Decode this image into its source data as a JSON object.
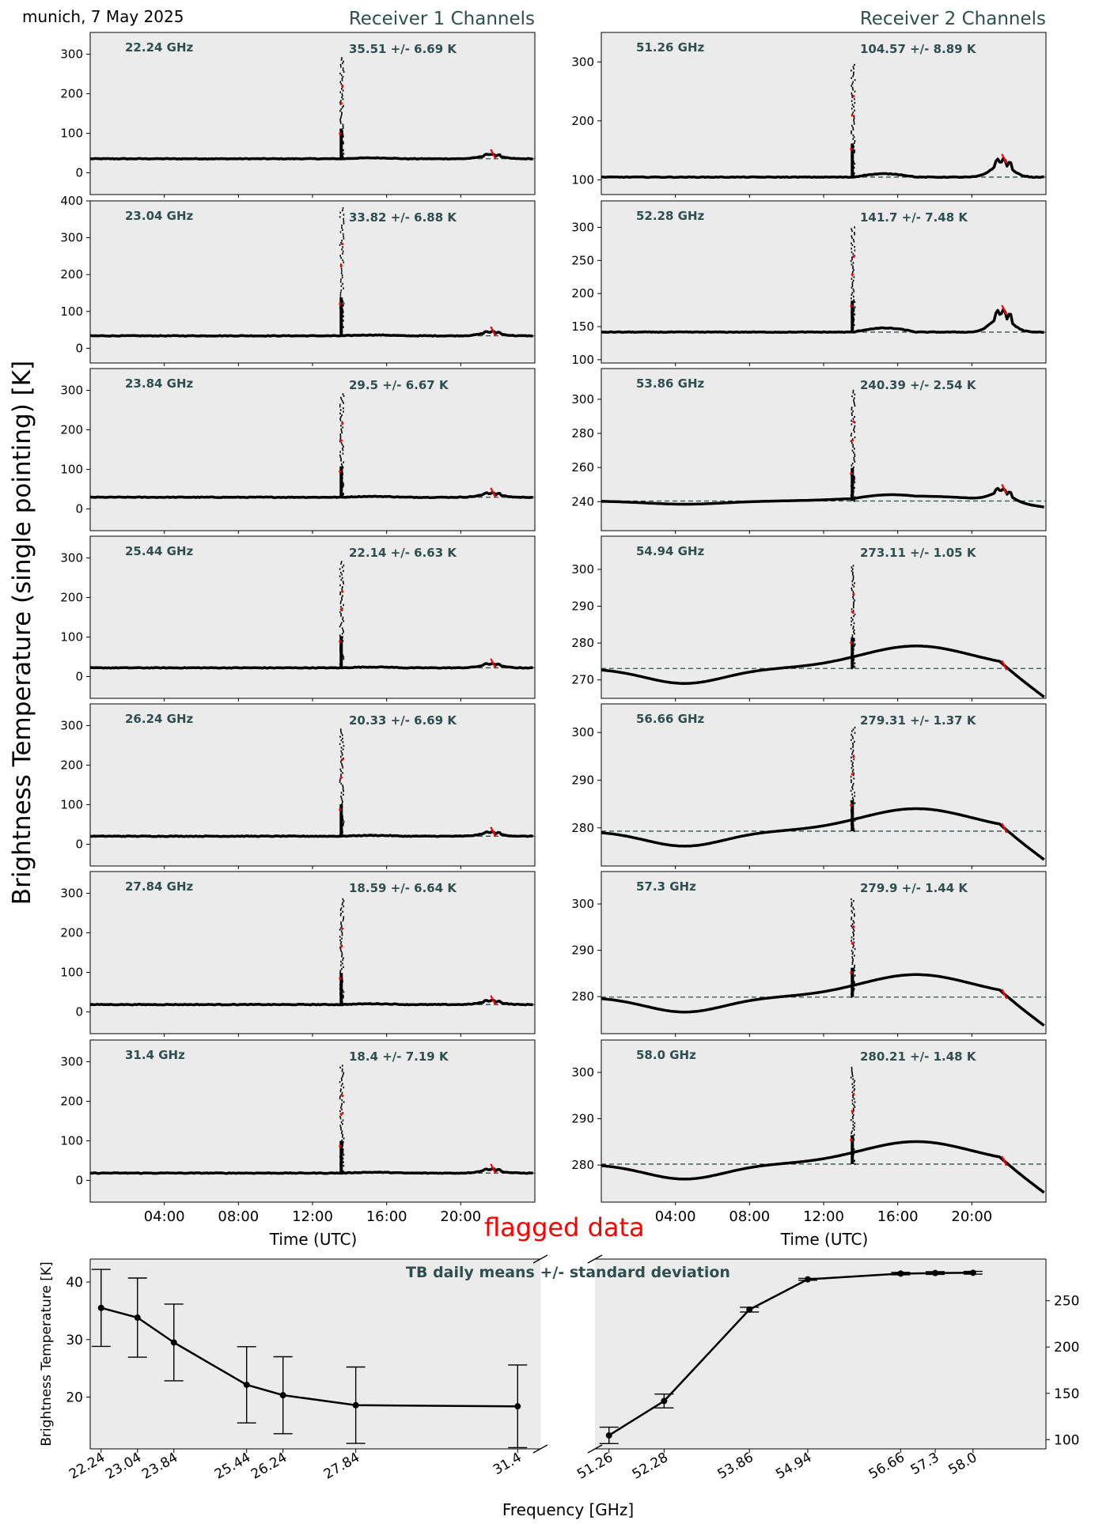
{
  "header": {
    "location_date": "munich, 7 May 2025",
    "receiver1_title": "Receiver 1 Channels",
    "receiver2_title": "Receiver 2 Channels",
    "y_axis_label": "Brightness Temperature (single pointing) [K]",
    "x_axis_label": "Time (UTC)",
    "flagged_label": "flagged data"
  },
  "colors": {
    "panel_bg": "#ebebeb",
    "data_points": "#000000",
    "flagged_points": "#ff0000",
    "annotation_text": "#2f4f4f",
    "mean_line": "#2f4f4f"
  },
  "chart_data": [
    {
      "type": "scatter",
      "receiver": "Receiver 1",
      "x_ticks": [
        "04:00",
        "08:00",
        "12:00",
        "16:00",
        "20:00"
      ],
      "panels": [
        {
          "freq": "22.24 GHz",
          "stat": "35.51 +/- 6.69 K",
          "mean": 35.51,
          "ylim": [
            -55,
            355
          ],
          "yticks": [
            0,
            100,
            200,
            300
          ],
          "spike_max": 290,
          "bump": 12
        },
        {
          "freq": "23.04 GHz",
          "stat": "33.82 +/- 6.88 K",
          "mean": 33.82,
          "ylim": [
            -40,
            400
          ],
          "yticks": [
            0,
            100,
            200,
            300,
            400
          ],
          "spike_max": 380,
          "bump": 12
        },
        {
          "freq": "23.84 GHz",
          "stat": "29.5 +/- 6.67 K",
          "mean": 29.5,
          "ylim": [
            -55,
            355
          ],
          "yticks": [
            0,
            100,
            200,
            300
          ],
          "spike_max": 290,
          "bump": 12
        },
        {
          "freq": "25.44 GHz",
          "stat": "22.14 +/- 6.63 K",
          "mean": 22.14,
          "ylim": [
            -55,
            355
          ],
          "yticks": [
            0,
            100,
            200,
            300
          ],
          "spike_max": 290,
          "bump": 12
        },
        {
          "freq": "26.24 GHz",
          "stat": "20.33 +/- 6.69 K",
          "mean": 20.33,
          "ylim": [
            -55,
            355
          ],
          "yticks": [
            0,
            100,
            200,
            300
          ],
          "spike_max": 290,
          "bump": 12
        },
        {
          "freq": "27.84 GHz",
          "stat": "18.59 +/- 6.64 K",
          "mean": 18.59,
          "ylim": [
            -55,
            355
          ],
          "yticks": [
            0,
            100,
            200,
            300
          ],
          "spike_max": 285,
          "bump": 12
        },
        {
          "freq": "31.4 GHz",
          "stat": "18.4 +/- 7.19 K",
          "mean": 18.4,
          "ylim": [
            -55,
            355
          ],
          "yticks": [
            0,
            100,
            200,
            300
          ],
          "spike_max": 290,
          "bump": 12
        }
      ]
    },
    {
      "type": "scatter",
      "receiver": "Receiver 2",
      "x_ticks": [
        "04:00",
        "08:00",
        "12:00",
        "16:00",
        "20:00"
      ],
      "panels": [
        {
          "freq": "51.26 GHz",
          "stat": "104.57 +/- 8.89 K",
          "mean": 104.57,
          "ylim": [
            75,
            350
          ],
          "yticks": [
            100,
            200,
            300
          ],
          "spike_max": 295,
          "bump": 30
        },
        {
          "freq": "52.28 GHz",
          "stat": "141.7 +/- 7.48 K",
          "mean": 141.7,
          "ylim": [
            95,
            340
          ],
          "yticks": [
            100,
            150,
            200,
            250,
            300
          ],
          "spike_max": 300,
          "bump": 30
        },
        {
          "freq": "53.86 GHz",
          "stat": "240.39 +/- 2.54 K",
          "mean": 240.39,
          "ylim": [
            223,
            318
          ],
          "yticks": [
            240,
            260,
            280,
            300
          ],
          "spike_max": 305,
          "bump": 8
        },
        {
          "freq": "54.94 GHz",
          "stat": "273.11 +/- 1.05 K",
          "mean": 273.11,
          "ylim": [
            265,
            309
          ],
          "yticks": [
            270,
            280,
            290,
            300
          ],
          "spike_max": 301,
          "bump": 0
        },
        {
          "freq": "56.66 GHz",
          "stat": "279.31 +/- 1.37 K",
          "mean": 279.31,
          "ylim": [
            272,
            306
          ],
          "yticks": [
            280,
            290,
            300
          ],
          "spike_max": 301,
          "bump": 0
        },
        {
          "freq": "57.3 GHz",
          "stat": "279.9 +/- 1.44 K",
          "mean": 279.9,
          "ylim": [
            272,
            307
          ],
          "yticks": [
            280,
            290,
            300
          ],
          "spike_max": 301,
          "bump": 0
        },
        {
          "freq": "58.0 GHz",
          "stat": "280.21 +/- 1.48 K",
          "mean": 280.21,
          "ylim": [
            272,
            307
          ],
          "yticks": [
            280,
            290,
            300
          ],
          "spike_max": 301,
          "bump": 0
        }
      ]
    },
    {
      "type": "line",
      "title": "TB daily means +/- standard deviation",
      "xlabel": "Frequency [GHz]",
      "ylabel": "Brightness Temperature [K]",
      "left": {
        "x": [
          22.24,
          23.04,
          23.84,
          25.44,
          26.24,
          27.84,
          31.4
        ],
        "tick_labels": [
          "22.24",
          "23.04",
          "23.84",
          "25.44",
          "26.24",
          "27.84",
          "31.4"
        ],
        "y": [
          35.51,
          33.82,
          29.5,
          22.14,
          20.33,
          18.59,
          18.4
        ],
        "err": [
          6.69,
          6.88,
          6.67,
          6.63,
          6.69,
          6.64,
          7.19
        ],
        "xlim": [
          22.0,
          31.9
        ],
        "ylim": [
          11,
          44
        ],
        "yticks": [
          20,
          30,
          40
        ]
      },
      "right": {
        "x": [
          51.26,
          52.28,
          53.86,
          54.94,
          56.66,
          57.3,
          58.0
        ],
        "tick_labels": [
          "51.26",
          "52.28",
          "53.86",
          "54.94",
          "56.66",
          "57.3",
          "58.0"
        ],
        "y": [
          104.57,
          141.7,
          240.39,
          273.11,
          279.31,
          279.9,
          280.21
        ],
        "err": [
          8.89,
          7.48,
          2.54,
          1.05,
          1.37,
          1.44,
          1.48
        ],
        "xlim": [
          51.0,
          59.35
        ],
        "ylim": [
          90,
          295
        ],
        "yticks": [
          100,
          150,
          200,
          250
        ]
      }
    }
  ]
}
